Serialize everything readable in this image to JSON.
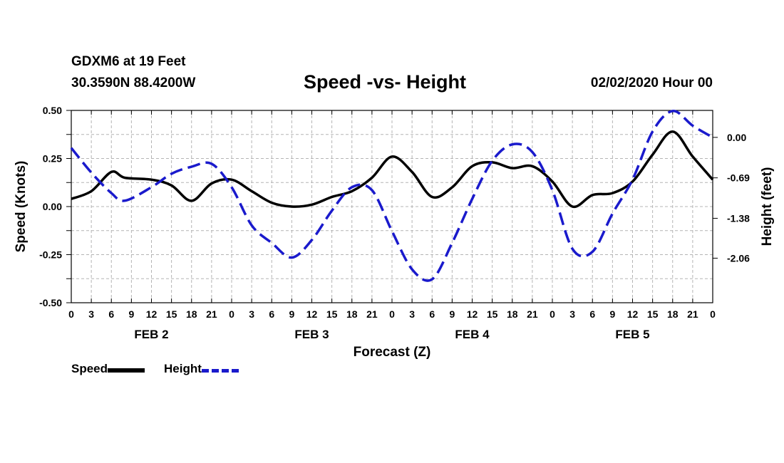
{
  "header": {
    "station": "GDXM6 at 19 Feet",
    "coords": "30.3590N 88.4200W",
    "title": "Speed -vs- Height",
    "datetime": "02/02/2020 Hour 00"
  },
  "legend": {
    "speed_label": "Speed",
    "height_label": "Height"
  },
  "colors": {
    "speed": "#000000",
    "height": "#1a1acc",
    "grid": "#b4b4b4"
  },
  "chart_data": {
    "type": "line",
    "title": "Speed -vs- Height",
    "xlabel": "Forecast (Z)",
    "ylabel_left": "Speed (Knots)",
    "ylabel_right": "Height (feet)",
    "xlim": [
      0,
      96
    ],
    "ylim_left": [
      -0.5,
      0.5
    ],
    "ylim_right": [
      -2.82,
      0.46
    ],
    "x_tick_labels": [
      "0",
      "3",
      "6",
      "9",
      "12",
      "15",
      "18",
      "21",
      "0",
      "3",
      "6",
      "9",
      "12",
      "15",
      "18",
      "21",
      "0",
      "3",
      "6",
      "9",
      "12",
      "15",
      "18",
      "21",
      "0",
      "3",
      "6",
      "9",
      "12",
      "15",
      "18",
      "21",
      "0"
    ],
    "left_ticks": [
      "0.50",
      "0.25",
      "0.00",
      "-0.25",
      "-0.50"
    ],
    "right_ticks": [
      "0.00",
      "-0.69",
      "-1.38",
      "-2.06"
    ],
    "right_tick_values": [
      0.0,
      -0.69,
      -1.38,
      -2.06
    ],
    "day_labels": [
      "FEB 2",
      "FEB 3",
      "FEB 4",
      "FEB 5"
    ],
    "grid": true,
    "series": [
      {
        "name": "Speed",
        "axis": "left",
        "x": [
          0,
          3,
          6,
          8,
          12,
          15,
          18,
          21,
          24,
          27,
          30,
          33,
          36,
          39,
          42,
          45,
          48,
          51,
          54,
          57,
          60,
          63,
          66,
          69,
          72,
          75,
          78,
          81,
          84,
          87,
          90,
          93,
          96
        ],
        "values": [
          0.04,
          0.08,
          0.18,
          0.15,
          0.14,
          0.11,
          0.03,
          0.12,
          0.14,
          0.08,
          0.02,
          0.0,
          0.01,
          0.05,
          0.08,
          0.15,
          0.26,
          0.18,
          0.05,
          0.1,
          0.21,
          0.23,
          0.2,
          0.21,
          0.13,
          0.0,
          0.06,
          0.07,
          0.13,
          0.27,
          0.39,
          0.26,
          0.14
        ]
      },
      {
        "name": "Height",
        "axis": "right",
        "x": [
          0,
          3,
          6,
          8,
          12,
          15,
          18,
          21,
          24,
          27,
          30,
          33,
          36,
          39,
          42,
          45,
          48,
          51,
          54,
          57,
          60,
          63,
          66,
          69,
          72,
          75,
          78,
          81,
          84,
          87,
          90,
          93,
          96
        ],
        "values": [
          -0.18,
          -0.6,
          -0.95,
          -1.08,
          -0.85,
          -0.62,
          -0.5,
          -0.45,
          -0.85,
          -1.5,
          -1.8,
          -2.05,
          -1.75,
          -1.25,
          -0.85,
          -0.9,
          -1.6,
          -2.25,
          -2.42,
          -1.8,
          -1.05,
          -0.4,
          -0.12,
          -0.25,
          -0.9,
          -1.9,
          -1.95,
          -1.3,
          -0.72,
          0.1,
          0.45,
          0.2,
          0.0
        ]
      }
    ]
  }
}
